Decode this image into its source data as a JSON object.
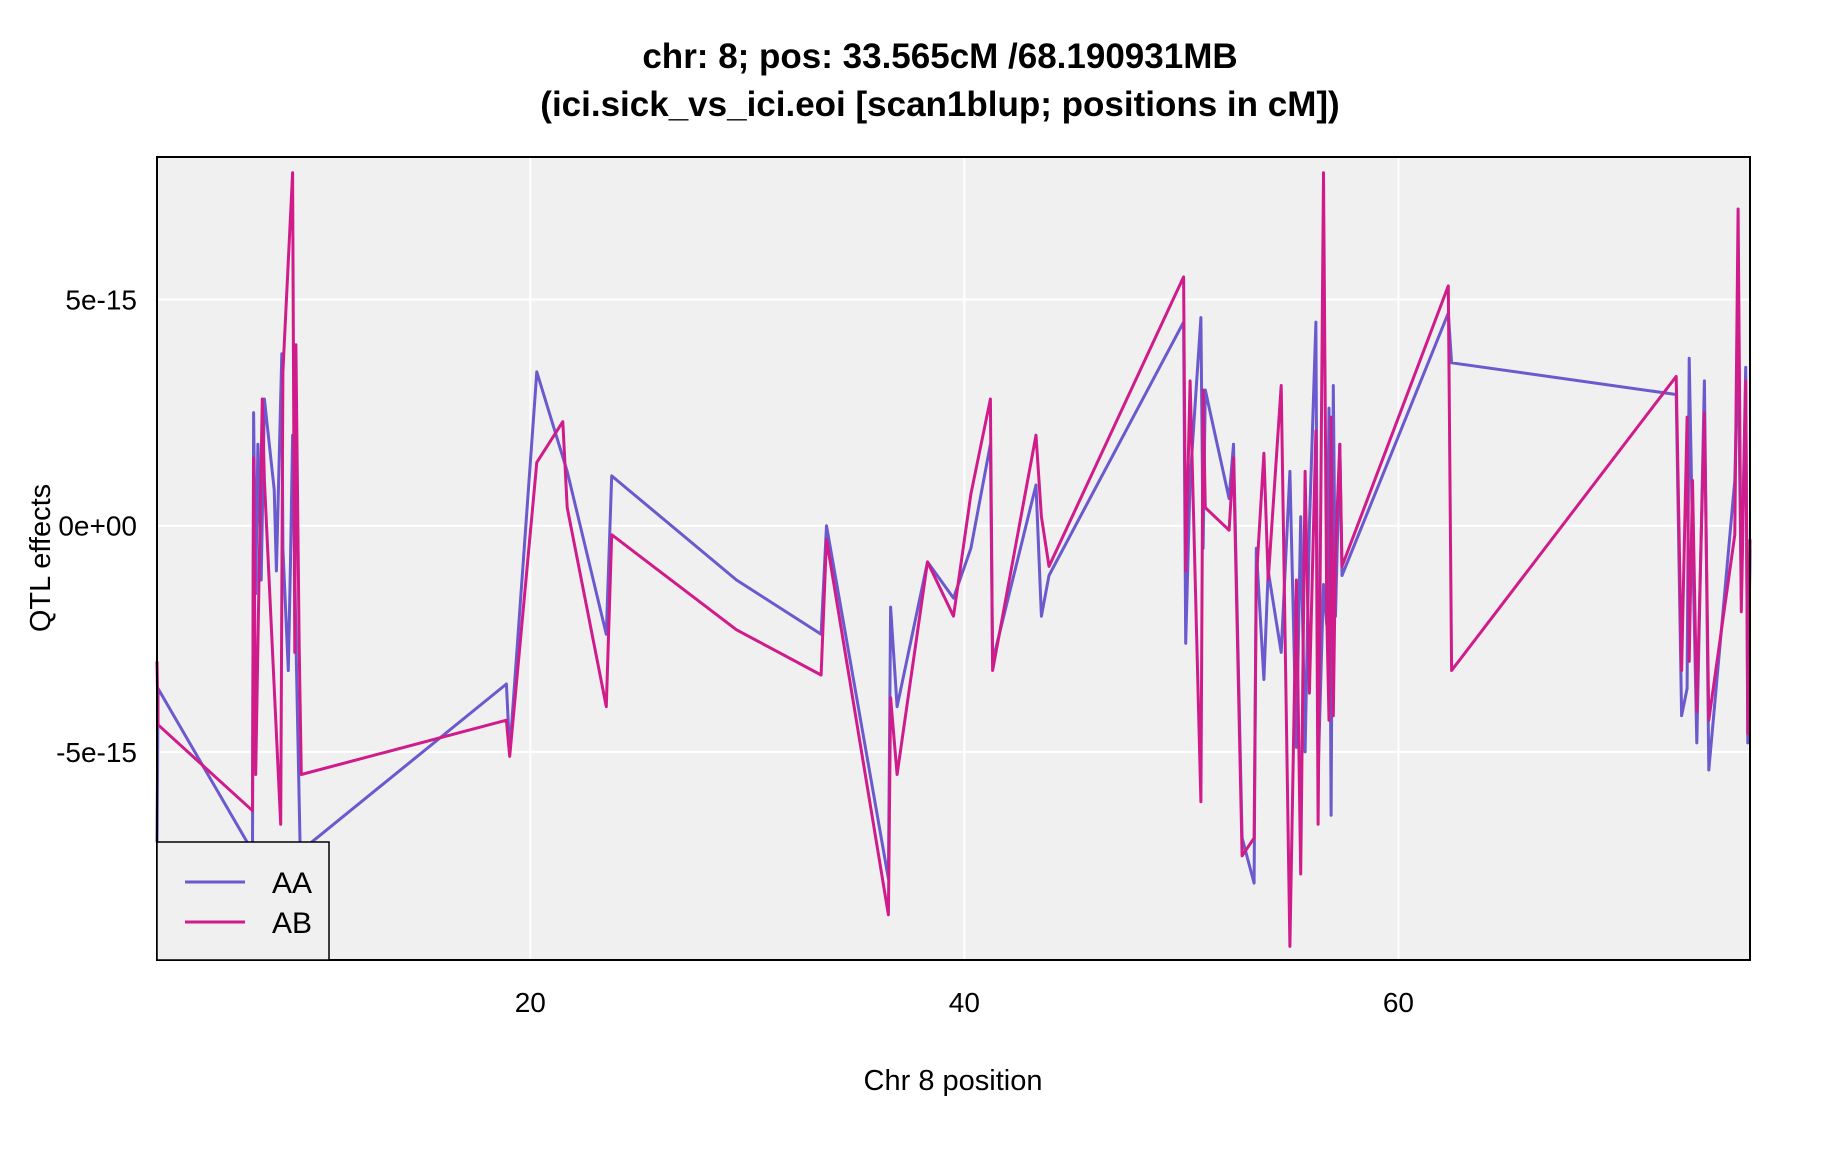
{
  "chart_data": {
    "type": "line",
    "title_line1": "chr: 8; pos: 33.565cM /68.190931MB",
    "title_line2": "(ici.sick_vs_ici.eoi [scan1blup; positions in cM])",
    "xlabel": "Chr 8 position",
    "ylabel": "QTL effects",
    "xlim": [
      2.8,
      76.2
    ],
    "ylim": [
      -9.6,
      8.15
    ],
    "x_ticks": [
      20,
      40,
      60
    ],
    "x_tick_labels": [
      "20",
      "40",
      "60"
    ],
    "y_ticks": [
      5,
      0,
      -5
    ],
    "y_tick_labels": [
      "5e-15",
      "0e+00",
      "-5e-15"
    ],
    "y_unit_note": "y values are in units of 1e-15",
    "grid": true,
    "legend_position": "bottom-left",
    "background": "#f0f0f0",
    "series": [
      {
        "name": "AA",
        "color": "#6a5acd",
        "points": [
          [
            2.8,
            -7.0
          ],
          [
            2.85,
            -3.6
          ],
          [
            7.2,
            -7.2
          ],
          [
            7.25,
            2.5
          ],
          [
            7.35,
            -1.5
          ],
          [
            7.45,
            1.8
          ],
          [
            7.6,
            -1.2
          ],
          [
            7.75,
            2.8
          ],
          [
            8.2,
            0.8
          ],
          [
            8.3,
            -1.0
          ],
          [
            8.55,
            3.8
          ],
          [
            8.6,
            -0.5
          ],
          [
            8.85,
            -3.2
          ],
          [
            8.95,
            -0.8
          ],
          [
            9.05,
            2.0
          ],
          [
            9.2,
            -2.5
          ],
          [
            9.4,
            -7.2
          ],
          [
            18.9,
            -3.5
          ],
          [
            19.05,
            -5.0
          ],
          [
            20.3,
            3.4
          ],
          [
            21.7,
            1.2
          ],
          [
            23.5,
            -2.4
          ],
          [
            23.75,
            1.1
          ],
          [
            29.5,
            -1.2
          ],
          [
            33.4,
            -2.4
          ],
          [
            33.65,
            0.0
          ],
          [
            36.5,
            -7.8
          ],
          [
            36.6,
            -1.8
          ],
          [
            36.9,
            -4.0
          ],
          [
            38.3,
            -0.8
          ],
          [
            39.5,
            -1.6
          ],
          [
            40.3,
            -0.5
          ],
          [
            41.2,
            1.8
          ],
          [
            41.3,
            -3.0
          ],
          [
            43.3,
            0.9
          ],
          [
            43.55,
            -2.0
          ],
          [
            43.9,
            -1.1
          ],
          [
            50.1,
            4.5
          ],
          [
            50.2,
            -2.6
          ],
          [
            50.4,
            1.0
          ],
          [
            50.9,
            4.6
          ],
          [
            51.0,
            -0.5
          ],
          [
            51.1,
            3.0
          ],
          [
            52.2,
            0.6
          ],
          [
            52.4,
            1.8
          ],
          [
            52.8,
            -6.9
          ],
          [
            53.35,
            -7.9
          ],
          [
            53.45,
            -0.5
          ],
          [
            53.8,
            -3.4
          ],
          [
            54.0,
            -1.0
          ],
          [
            54.6,
            -2.8
          ],
          [
            55.0,
            1.2
          ],
          [
            55.3,
            -4.9
          ],
          [
            55.5,
            0.2
          ],
          [
            55.7,
            -5.0
          ],
          [
            55.9,
            0.0
          ],
          [
            56.2,
            4.5
          ],
          [
            56.3,
            -5.5
          ],
          [
            56.55,
            -1.3
          ],
          [
            56.7,
            -2.2
          ],
          [
            56.8,
            2.6
          ],
          [
            56.9,
            -6.4
          ],
          [
            57.0,
            3.1
          ],
          [
            57.1,
            -2.0
          ],
          [
            57.3,
            1.8
          ],
          [
            57.4,
            -1.1
          ],
          [
            62.3,
            4.7
          ],
          [
            62.45,
            3.6
          ],
          [
            72.8,
            2.9
          ],
          [
            73.05,
            -4.2
          ],
          [
            73.3,
            -3.6
          ],
          [
            73.4,
            3.7
          ],
          [
            73.55,
            -0.2
          ],
          [
            73.75,
            -4.8
          ],
          [
            74.1,
            3.2
          ],
          [
            74.3,
            -5.4
          ],
          [
            75.5,
            1.0
          ],
          [
            75.65,
            4.0
          ],
          [
            75.8,
            -1.6
          ],
          [
            76.0,
            3.5
          ],
          [
            76.1,
            -4.8
          ],
          [
            76.2,
            -0.5
          ]
        ]
      },
      {
        "name": "AB",
        "color": "#d01c8b",
        "points": [
          [
            2.8,
            -3.0
          ],
          [
            2.85,
            -4.4
          ],
          [
            7.2,
            -6.3
          ],
          [
            7.25,
            1.5
          ],
          [
            7.35,
            -5.5
          ],
          [
            7.5,
            -1.2
          ],
          [
            7.65,
            2.8
          ],
          [
            7.75,
            1.0
          ],
          [
            8.5,
            -6.6
          ],
          [
            8.6,
            3.4
          ],
          [
            9.05,
            7.8
          ],
          [
            9.15,
            -2.8
          ],
          [
            9.2,
            4.0
          ],
          [
            9.35,
            -2.7
          ],
          [
            9.45,
            -5.5
          ],
          [
            18.9,
            -4.3
          ],
          [
            19.05,
            -5.1
          ],
          [
            20.3,
            1.4
          ],
          [
            21.5,
            2.3
          ],
          [
            21.7,
            0.4
          ],
          [
            23.5,
            -4.0
          ],
          [
            23.75,
            -0.2
          ],
          [
            29.5,
            -2.3
          ],
          [
            33.4,
            -3.3
          ],
          [
            33.65,
            -0.3
          ],
          [
            36.5,
            -8.6
          ],
          [
            36.6,
            -3.8
          ],
          [
            36.9,
            -5.5
          ],
          [
            38.3,
            -0.8
          ],
          [
            39.5,
            -2.0
          ],
          [
            40.3,
            0.7
          ],
          [
            41.2,
            2.8
          ],
          [
            41.3,
            -3.2
          ],
          [
            43.3,
            2.0
          ],
          [
            43.55,
            0.2
          ],
          [
            43.9,
            -0.9
          ],
          [
            50.1,
            5.5
          ],
          [
            50.2,
            -1.0
          ],
          [
            50.4,
            3.2
          ],
          [
            50.9,
            -6.1
          ],
          [
            51.0,
            3.0
          ],
          [
            51.1,
            0.4
          ],
          [
            52.2,
            -0.1
          ],
          [
            52.4,
            1.5
          ],
          [
            52.8,
            -7.3
          ],
          [
            53.35,
            -6.9
          ],
          [
            53.45,
            -1.2
          ],
          [
            53.8,
            1.6
          ],
          [
            54.0,
            -1.2
          ],
          [
            54.6,
            3.1
          ],
          [
            55.0,
            -9.3
          ],
          [
            55.3,
            -1.2
          ],
          [
            55.5,
            -7.7
          ],
          [
            55.7,
            1.2
          ],
          [
            55.9,
            -3.7
          ],
          [
            56.2,
            2.1
          ],
          [
            56.3,
            -6.6
          ],
          [
            56.55,
            7.8
          ],
          [
            56.7,
            -2.0
          ],
          [
            56.8,
            -4.3
          ],
          [
            56.9,
            2.4
          ],
          [
            57.0,
            -4.2
          ],
          [
            57.1,
            -0.6
          ],
          [
            57.3,
            1.8
          ],
          [
            57.4,
            -0.9
          ],
          [
            62.3,
            5.3
          ],
          [
            62.45,
            -3.2
          ],
          [
            72.8,
            3.3
          ],
          [
            73.05,
            -3.2
          ],
          [
            73.3,
            2.4
          ],
          [
            73.4,
            -3.0
          ],
          [
            73.55,
            1.0
          ],
          [
            73.75,
            -4.1
          ],
          [
            74.1,
            2.5
          ],
          [
            74.3,
            -4.3
          ],
          [
            75.5,
            -0.2
          ],
          [
            75.65,
            7.0
          ],
          [
            75.8,
            -1.9
          ],
          [
            76.0,
            3.2
          ],
          [
            76.1,
            -4.6
          ],
          [
            76.2,
            -0.3
          ]
        ]
      }
    ]
  }
}
